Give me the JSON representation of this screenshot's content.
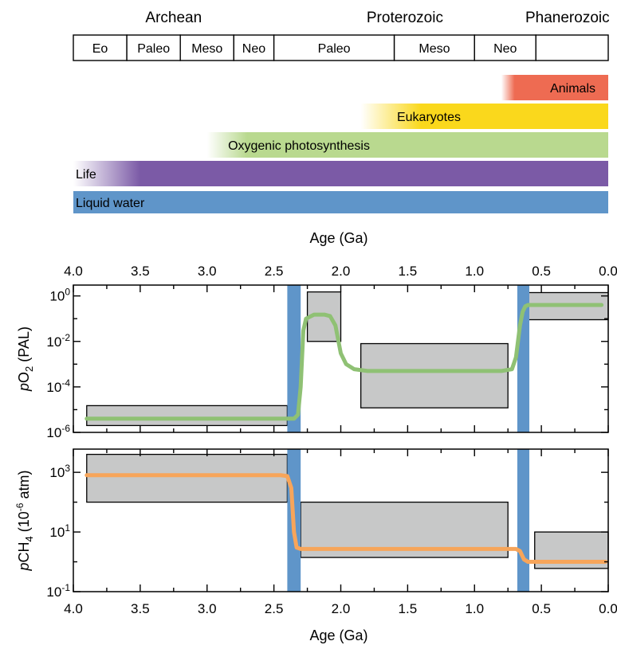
{
  "timescale": {
    "eons": [
      {
        "label": "Archean",
        "start": 4.0,
        "end": 2.5
      },
      {
        "label": "Proterozoic",
        "start": 2.5,
        "end": 0.541
      },
      {
        "label": "Phanerozoic",
        "start": 0.541,
        "end": 0.0
      }
    ],
    "eras": [
      {
        "label": "Eo",
        "start": 4.0,
        "end": 3.6
      },
      {
        "label": "Paleo",
        "start": 3.6,
        "end": 3.2
      },
      {
        "label": "Meso",
        "start": 3.2,
        "end": 2.8
      },
      {
        "label": "Neo",
        "start": 2.8,
        "end": 2.5
      },
      {
        "label": "Paleo",
        "start": 2.5,
        "end": 1.6
      },
      {
        "label": "Meso",
        "start": 1.6,
        "end": 1.0
      },
      {
        "label": "Neo",
        "start": 1.0,
        "end": 0.541
      },
      {
        "label": "",
        "start": 0.541,
        "end": 0.0
      }
    ]
  },
  "milestones": [
    {
      "label": "Animals",
      "fade_start": 0.8,
      "solid_from": 0.7,
      "color": "#ee6b52"
    },
    {
      "label": "Eukaryotes",
      "fade_start": 1.85,
      "solid_from": 1.4,
      "color": "#fad81c"
    },
    {
      "label": "Oxygenic photosynthesis",
      "fade_start": 3.0,
      "solid_from": 2.7,
      "color": "#b9d98f"
    },
    {
      "label": "Life",
      "fade_start": 4.0,
      "solid_from": 3.5,
      "color": "#7b5aa6"
    },
    {
      "label": "Liquid water",
      "fade_start": 4.0,
      "solid_from": 4.0,
      "color": "#5f95c9"
    }
  ],
  "chart_data": [
    {
      "type": "line",
      "xlabel": "Age (Ga)",
      "ylabel": "pO2 (PAL)",
      "xlim": [
        4.0,
        0.0
      ],
      "ylim": [
        1e-06,
        3
      ],
      "yscale": "log",
      "x_ticks": [
        "4.0",
        "3.5",
        "3.0",
        "2.5",
        "2.0",
        "1.5",
        "1.0",
        "0.5",
        "0.0"
      ],
      "y_ticks": [
        {
          "base": "10",
          "exp": "0",
          "value": 1
        },
        {
          "base": "10",
          "exp": "-2",
          "value": 0.01
        },
        {
          "base": "10",
          "exp": "-4",
          "value": 0.0001
        },
        {
          "base": "10",
          "exp": "-6",
          "value": 1e-06
        }
      ],
      "uncertainty_boxes": [
        {
          "x_range": [
            3.9,
            2.4
          ],
          "y_range": [
            2e-06,
            1.5e-05
          ]
        },
        {
          "x_range": [
            2.25,
            2.0
          ],
          "y_range": [
            0.01,
            1.5
          ]
        },
        {
          "x_range": [
            1.85,
            0.75
          ],
          "y_range": [
            1.2e-05,
            0.008
          ]
        },
        {
          "x_range": [
            0.6,
            0.0
          ],
          "y_range": [
            0.09,
            1.4
          ]
        }
      ],
      "transitions": [
        {
          "x_range": [
            2.4,
            2.3
          ],
          "color": "#5f95c9"
        },
        {
          "x_range": [
            0.68,
            0.59
          ],
          "color": "#5f95c9"
        }
      ],
      "series": [
        {
          "color": "#8fc174",
          "x": [
            3.9,
            2.45,
            2.35,
            2.32,
            2.3,
            2.28,
            2.26,
            2.2,
            2.12,
            2.08,
            2.04,
            2.0,
            1.96,
            1.9,
            1.8,
            1.0,
            0.8,
            0.72,
            0.69,
            0.66,
            0.64,
            0.62,
            0.6,
            0.55,
            0.3,
            0.05
          ],
          "y": [
            4e-06,
            4e-06,
            4e-06,
            6e-06,
            0.0001,
            0.03,
            0.1,
            0.15,
            0.15,
            0.13,
            0.05,
            0.003,
            0.001,
            0.0006,
            0.0005,
            0.0005,
            0.0005,
            0.0006,
            0.002,
            0.05,
            0.2,
            0.35,
            0.4,
            0.4,
            0.4,
            0.4
          ]
        }
      ]
    },
    {
      "type": "line",
      "xlabel": "Age (Ga)",
      "ylabel": "pCH4 (10-6 atm)",
      "xlim": [
        4.0,
        0.0
      ],
      "ylim": [
        0.1,
        6000
      ],
      "yscale": "log",
      "x_ticks": [
        "4.0",
        "3.5",
        "3.0",
        "2.5",
        "2.0",
        "1.5",
        "1.0",
        "0.5",
        "0.0"
      ],
      "y_ticks": [
        {
          "base": "10",
          "exp": "3",
          "value": 1000
        },
        {
          "base": "10",
          "exp": "1",
          "value": 10
        },
        {
          "base": "10",
          "exp": "-1",
          "value": 0.1
        }
      ],
      "uncertainty_boxes": [
        {
          "x_range": [
            3.9,
            2.4
          ],
          "y_range": [
            100,
            4000
          ]
        },
        {
          "x_range": [
            2.3,
            0.75
          ],
          "y_range": [
            1.4,
            100
          ]
        },
        {
          "x_range": [
            0.55,
            0.0
          ],
          "y_range": [
            0.6,
            10
          ]
        }
      ],
      "transitions": [
        {
          "x_range": [
            2.4,
            2.3
          ],
          "color": "#5f95c9"
        },
        {
          "x_range": [
            0.68,
            0.59
          ],
          "color": "#5f95c9"
        }
      ],
      "series": [
        {
          "color": "#f7a55a",
          "x": [
            3.9,
            2.45,
            2.4,
            2.37,
            2.35,
            2.33,
            2.3,
            2.2,
            1.0,
            0.75,
            0.69,
            0.66,
            0.63,
            0.6,
            0.3,
            0.02
          ],
          "y": [
            800,
            800,
            750,
            300,
            10,
            3,
            2.7,
            2.7,
            2.7,
            2.7,
            2.7,
            2.3,
            1.2,
            1.0,
            1.0,
            1.0
          ]
        }
      ]
    }
  ]
}
